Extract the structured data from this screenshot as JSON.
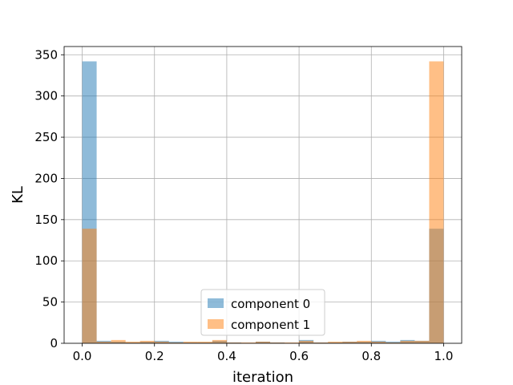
{
  "chart_data": {
    "type": "bar",
    "xlabel": "iteration",
    "ylabel": "KL",
    "xlim": [
      -0.05,
      1.05
    ],
    "ylim": [
      0,
      360
    ],
    "x_ticks": [
      "0.0",
      "0.2",
      "0.4",
      "0.6",
      "0.8",
      "1.0"
    ],
    "x_tick_values": [
      0.0,
      0.2,
      0.4,
      0.6,
      0.8,
      1.0
    ],
    "y_ticks": [
      "0",
      "50",
      "100",
      "150",
      "200",
      "250",
      "300",
      "350"
    ],
    "y_tick_values": [
      0,
      50,
      100,
      150,
      200,
      250,
      300,
      350
    ],
    "grid": true,
    "legend_position": "lower center",
    "bin_edges": [
      0.0,
      0.04,
      0.08,
      0.12,
      0.16,
      0.2,
      0.24,
      0.28,
      0.32,
      0.36,
      0.4,
      0.44,
      0.48,
      0.52,
      0.56,
      0.6,
      0.64,
      0.68,
      0.72,
      0.76,
      0.8,
      0.84,
      0.88,
      0.92,
      0.96,
      1.0
    ],
    "series": [
      {
        "name": "component 0",
        "color": "#1f77b4",
        "alpha": 0.5,
        "values": [
          342,
          3,
          2,
          1,
          2,
          3,
          2,
          1,
          1,
          3,
          1,
          0,
          2,
          1,
          0,
          4,
          1,
          1,
          2,
          2,
          3,
          2,
          4,
          3,
          139
        ]
      },
      {
        "name": "component 1",
        "color": "#ff7f0e",
        "alpha": 0.5,
        "values": [
          139,
          2,
          4,
          2,
          3,
          2,
          1,
          2,
          2,
          4,
          1,
          1,
          2,
          1,
          1,
          3,
          1,
          2,
          2,
          3,
          2,
          1,
          3,
          3,
          342
        ]
      }
    ]
  }
}
